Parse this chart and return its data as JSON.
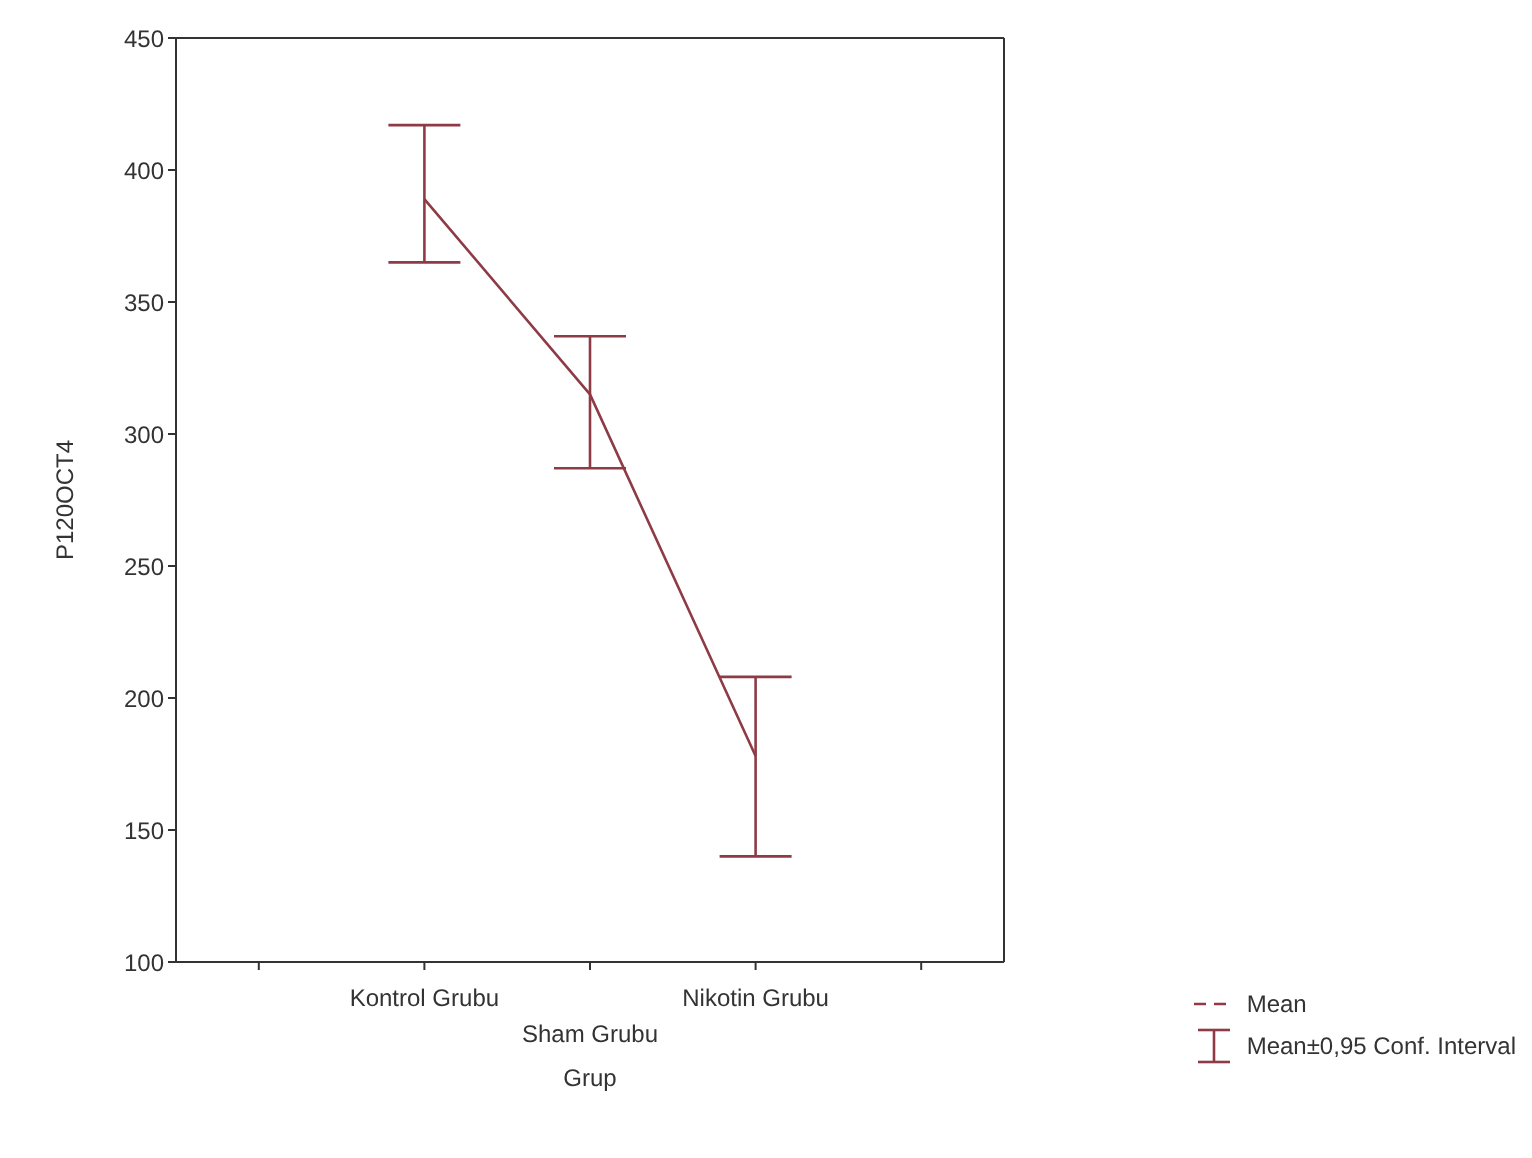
{
  "chart_data": {
    "type": "line",
    "xlabel": "Grup",
    "ylabel": "P120OCT4",
    "categories": [
      "Kontrol Grubu",
      "Sham Grubu",
      "Nikotin Grubu"
    ],
    "series": [
      {
        "name": "Mean",
        "color": "#8e3b46",
        "values": [
          389,
          315,
          178
        ],
        "errors": [
          [
            365,
            417
          ],
          [
            287,
            337
          ],
          [
            140,
            208
          ]
        ]
      }
    ],
    "ylim": [
      100,
      450
    ],
    "yticks": [
      100,
      150,
      200,
      250,
      300,
      350,
      400,
      450
    ],
    "legend": "bottom right",
    "marker": "none",
    "annotations": [
      "Mean±0,95 Conf. Interval"
    ]
  }
}
